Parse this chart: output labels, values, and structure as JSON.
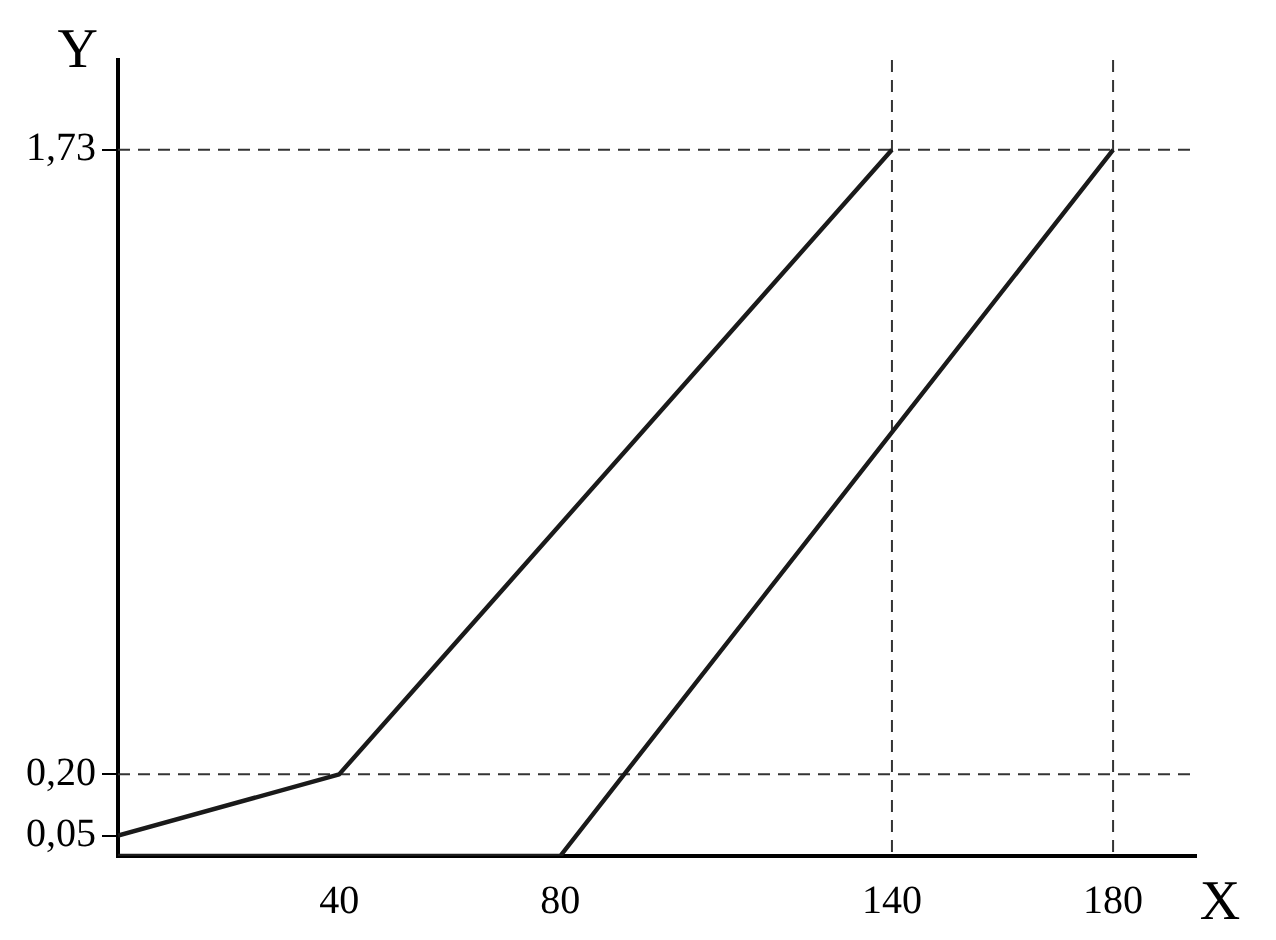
{
  "chart_data": {
    "type": "line",
    "xlabel": "X",
    "ylabel": "Y",
    "xlim": [
      0,
      195
    ],
    "ylim": [
      0,
      1.95
    ],
    "xticks": [
      40,
      80,
      140,
      180
    ],
    "yticks": [
      {
        "value": 0.05,
        "label": "0,05"
      },
      {
        "value": 0.2,
        "label": "0,20"
      },
      {
        "value": 1.73,
        "label": "1,73"
      }
    ],
    "grid": false,
    "legend": false,
    "marker": "none",
    "line_style": "solid",
    "series": [
      {
        "color": "#1a1a1a",
        "x": [
          0,
          40,
          140
        ],
        "values": [
          0.05,
          0.2,
          1.73
        ]
      },
      {
        "color": "#1a1a1a",
        "x": [
          0,
          80,
          180
        ],
        "values": [
          0,
          0,
          1.73
        ]
      }
    ],
    "ref_lines": [
      {
        "axis": "y",
        "value": 1.73,
        "line_style": "dashed",
        "color": "#333333"
      },
      {
        "axis": "y",
        "value": 0.2,
        "line_style": "dashed",
        "color": "#333333"
      },
      {
        "axis": "x",
        "value": 140,
        "line_style": "dashed",
        "color": "#333333"
      },
      {
        "axis": "x",
        "value": 180,
        "line_style": "dashed",
        "color": "#333333"
      }
    ]
  }
}
